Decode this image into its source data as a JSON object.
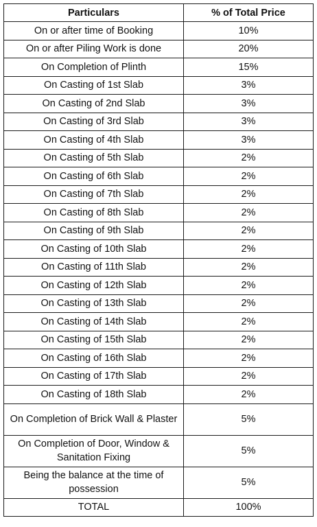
{
  "table": {
    "headers": {
      "particulars": "Particulars",
      "percent": "% of Total Price"
    },
    "rows": [
      {
        "particulars": "On or after time of Booking",
        "percent": "10%"
      },
      {
        "particulars": "On or after Piling Work is done",
        "percent": "20%"
      },
      {
        "particulars": "On Completion of Plinth",
        "percent": "15%"
      },
      {
        "particulars": "On Casting of 1st Slab",
        "percent": "3%"
      },
      {
        "particulars": "On Casting of 2nd Slab",
        "percent": "3%"
      },
      {
        "particulars": "On Casting of 3rd Slab",
        "percent": "3%"
      },
      {
        "particulars": "On Casting of 4th Slab",
        "percent": "3%"
      },
      {
        "particulars": "On Casting of 5th Slab",
        "percent": "2%"
      },
      {
        "particulars": "On Casting of 6th Slab",
        "percent": "2%"
      },
      {
        "particulars": "On Casting of 7th Slab",
        "percent": "2%"
      },
      {
        "particulars": "On Casting of 8th Slab",
        "percent": "2%"
      },
      {
        "particulars": "On Casting of 9th Slab",
        "percent": "2%"
      },
      {
        "particulars": "On Casting of 10th Slab",
        "percent": "2%"
      },
      {
        "particulars": "On Casting of 11th Slab",
        "percent": "2%"
      },
      {
        "particulars": "On Casting of 12th Slab",
        "percent": "2%"
      },
      {
        "particulars": "On Casting of 13th Slab",
        "percent": "2%"
      },
      {
        "particulars": "On Casting of 14th Slab",
        "percent": "2%"
      },
      {
        "particulars": "On Casting of 15th Slab",
        "percent": "2%"
      },
      {
        "particulars": "On Casting of 16th Slab",
        "percent": "2%"
      },
      {
        "particulars": "On Casting of 17th Slab",
        "percent": "2%"
      },
      {
        "particulars": "On Casting of 18th Slab",
        "percent": "2%"
      },
      {
        "particulars": "On Completion of Brick Wall & Plaster",
        "percent": "5%"
      },
      {
        "particulars": "On Completion of Door, Window & Sanitation Fixing",
        "percent": "5%"
      },
      {
        "particulars": "Being the balance at the time of possession",
        "percent": "5%"
      },
      {
        "particulars": "TOTAL",
        "percent": "100%"
      }
    ]
  }
}
